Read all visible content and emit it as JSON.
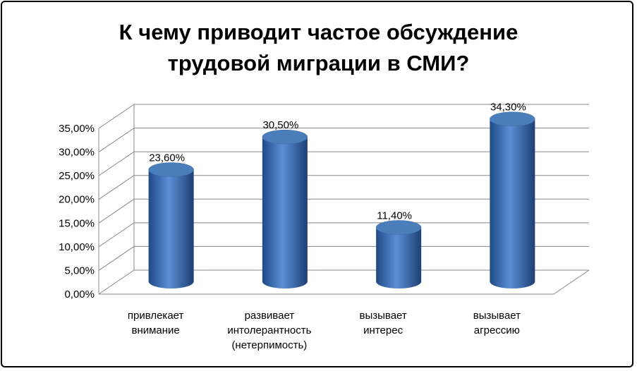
{
  "chart_data": {
    "type": "bar",
    "style": "3d-cylinder",
    "title": "К чему приводит частое обсуждение трудовой миграции в СМИ?",
    "categories": [
      "привлекает внимание",
      "развивает интолерантность (нетерпимость)",
      "вызывает интерес",
      "вызывает агрессию"
    ],
    "values": [
      23.6,
      30.5,
      11.4,
      34.3
    ],
    "value_labels": [
      "23,60%",
      "30,50%",
      "11,40%",
      "34,30%"
    ],
    "color": "#4a7ebb",
    "ylim": [
      0,
      35
    ],
    "yticks": [
      {
        "value": 0,
        "label": "0,00%"
      },
      {
        "value": 5,
        "label": "5,00%"
      },
      {
        "value": 10,
        "label": "10,00%"
      },
      {
        "value": 15,
        "label": "15,00%"
      },
      {
        "value": 20,
        "label": "20,00%"
      },
      {
        "value": 25,
        "label": "25,00%"
      },
      {
        "value": 30,
        "label": "30,00%"
      },
      {
        "value": 35,
        "label": "35,00%"
      }
    ],
    "grid": true
  }
}
